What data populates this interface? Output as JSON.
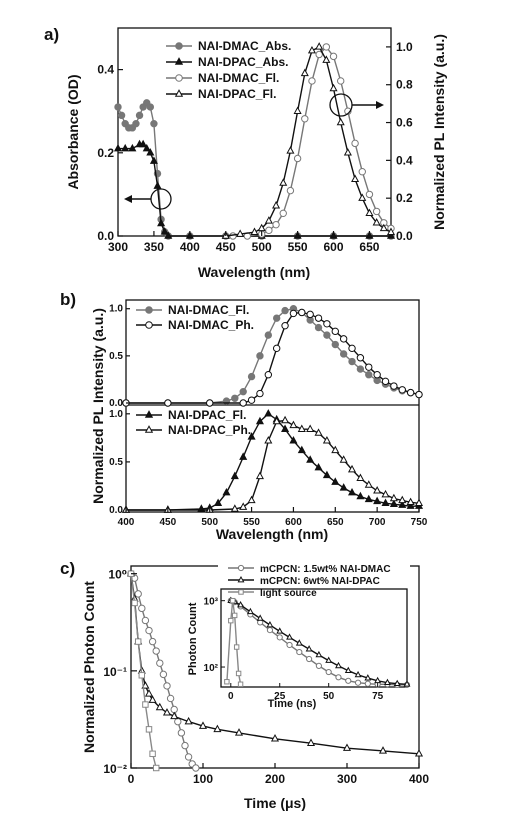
{
  "chart_data": [
    {
      "panel_label": "a)",
      "type": "line",
      "xlabel": "Wavelength (nm)",
      "ylabel_left": "Absorbance (OD)",
      "ylabel_right": "Normalized PL Intensity (a.u.)",
      "xlim": [
        300,
        680
      ],
      "ylim_left": [
        0,
        0.5
      ],
      "ylim_right": [
        0,
        1.1
      ],
      "xticks": [
        300,
        350,
        400,
        450,
        500,
        550,
        600,
        650
      ],
      "yticks_left": [
        0.0,
        0.2,
        0.4
      ],
      "yticks_right": [
        0.0,
        0.2,
        0.4,
        0.6,
        0.8,
        1.0
      ],
      "ytick_labels_left": [
        "0.0",
        "0.2",
        "0.4"
      ],
      "ytick_labels_right": [
        "0.0",
        "0.2",
        "0.4",
        "0.6",
        "0.8",
        "1.0"
      ],
      "legend_position": "top-left",
      "series": [
        {
          "name": "NAI-DMAC_Abs.",
          "axis": "left",
          "marker": "filled-circle",
          "color": "#777777",
          "x": [
            300,
            305,
            310,
            315,
            320,
            325,
            330,
            335,
            340,
            345,
            350,
            355,
            360,
            365,
            370,
            400,
            450,
            500,
            550,
            600,
            650,
            680
          ],
          "y": [
            0.31,
            0.29,
            0.27,
            0.26,
            0.26,
            0.27,
            0.29,
            0.31,
            0.32,
            0.31,
            0.27,
            0.15,
            0.04,
            0.01,
            0.0,
            0.0,
            0.0,
            0.0,
            0.0,
            0.0,
            0.0,
            0.0
          ]
        },
        {
          "name": "NAI-DPAC_Abs.",
          "axis": "left",
          "marker": "filled-triangle",
          "color": "#111111",
          "x": [
            300,
            310,
            320,
            330,
            335,
            340,
            345,
            350,
            355,
            360,
            365,
            370,
            400,
            450,
            500,
            550,
            600,
            650,
            680
          ],
          "y": [
            0.21,
            0.21,
            0.21,
            0.22,
            0.22,
            0.21,
            0.2,
            0.18,
            0.12,
            0.03,
            0.01,
            0.0,
            0.0,
            0.0,
            0.0,
            0.0,
            0.0,
            0.0,
            0.0
          ]
        },
        {
          "name": "NAI-DMAC_Fl.",
          "axis": "right",
          "marker": "open-circle",
          "color": "#777777",
          "x": [
            460,
            480,
            500,
            510,
            520,
            530,
            540,
            550,
            560,
            570,
            580,
            590,
            600,
            610,
            620,
            630,
            640,
            650,
            660,
            670,
            680
          ],
          "y": [
            0.0,
            0.0,
            0.01,
            0.03,
            0.06,
            0.12,
            0.24,
            0.41,
            0.62,
            0.82,
            0.96,
            1.0,
            0.95,
            0.82,
            0.66,
            0.49,
            0.34,
            0.22,
            0.13,
            0.07,
            0.04
          ]
        },
        {
          "name": "NAI-DPAC_Fl.",
          "axis": "right",
          "marker": "open-triangle",
          "color": "#111111",
          "x": [
            450,
            470,
            490,
            500,
            510,
            520,
            530,
            540,
            550,
            560,
            570,
            580,
            590,
            600,
            610,
            620,
            630,
            640,
            650,
            660,
            670,
            680
          ],
          "y": [
            0.0,
            0.01,
            0.02,
            0.04,
            0.08,
            0.16,
            0.28,
            0.45,
            0.66,
            0.86,
            0.98,
            1.0,
            0.93,
            0.78,
            0.6,
            0.44,
            0.3,
            0.2,
            0.12,
            0.07,
            0.04,
            0.02
          ]
        }
      ]
    },
    {
      "panel_label": "b)",
      "type": "line",
      "xlabel": "Wavelength (nm)",
      "ylabel": "Normalized PL Intensity (a.u.)",
      "xlim": [
        400,
        750
      ],
      "ylim": [
        0,
        1.05
      ],
      "xticks": [
        400,
        450,
        500,
        550,
        600,
        650,
        700,
        750
      ],
      "yticks": [
        0.0,
        0.5,
        1.0
      ],
      "ytick_labels": [
        "0.0",
        "0.5",
        "1.0"
      ],
      "subplots": [
        {
          "legend_position": "top-left",
          "series": [
            {
              "name": "NAI-DMAC_Fl.",
              "marker": "filled-circle",
              "color": "#777777",
              "x": [
                400,
                450,
                500,
                520,
                530,
                540,
                550,
                560,
                570,
                580,
                590,
                600,
                610,
                620,
                630,
                640,
                650,
                660,
                670,
                680,
                690,
                700,
                710,
                720,
                730,
                740,
                750
              ],
              "y": [
                0.0,
                0.0,
                0.0,
                0.02,
                0.05,
                0.12,
                0.28,
                0.5,
                0.72,
                0.9,
                0.98,
                1.0,
                0.96,
                0.88,
                0.8,
                0.72,
                0.62,
                0.52,
                0.44,
                0.36,
                0.3,
                0.24,
                0.2,
                0.16,
                0.13,
                0.11,
                0.09
              ]
            },
            {
              "name": "NAI-DMAC_Ph.",
              "marker": "open-circle",
              "color": "#111111",
              "x": [
                400,
                450,
                500,
                540,
                550,
                560,
                570,
                580,
                590,
                600,
                610,
                620,
                630,
                640,
                650,
                660,
                670,
                680,
                690,
                700,
                710,
                720,
                730,
                740,
                750
              ],
              "y": [
                0.0,
                0.0,
                0.0,
                0.0,
                0.03,
                0.1,
                0.3,
                0.58,
                0.82,
                0.95,
                0.96,
                0.94,
                0.9,
                0.84,
                0.76,
                0.68,
                0.58,
                0.48,
                0.38,
                0.3,
                0.23,
                0.18,
                0.14,
                0.11,
                0.09
              ]
            }
          ]
        },
        {
          "legend_position": "top-left",
          "series": [
            {
              "name": "NAI-DPAC_Fl.",
              "marker": "filled-triangle",
              "color": "#111111",
              "x": [
                400,
                450,
                490,
                500,
                510,
                520,
                530,
                540,
                550,
                560,
                570,
                580,
                590,
                600,
                610,
                620,
                630,
                640,
                650,
                660,
                670,
                680,
                690,
                700,
                710,
                720,
                730,
                740,
                750
              ],
              "y": [
                0.0,
                0.0,
                0.01,
                0.02,
                0.07,
                0.18,
                0.35,
                0.55,
                0.76,
                0.92,
                1.0,
                0.94,
                0.84,
                0.72,
                0.62,
                0.52,
                0.44,
                0.36,
                0.29,
                0.23,
                0.18,
                0.14,
                0.11,
                0.09,
                0.07,
                0.06,
                0.05,
                0.04,
                0.04
              ]
            },
            {
              "name": "NAI-DPAC_Ph.",
              "marker": "open-triangle",
              "color": "#111111",
              "x": [
                400,
                450,
                500,
                530,
                540,
                550,
                560,
                570,
                580,
                590,
                600,
                610,
                620,
                630,
                640,
                650,
                660,
                670,
                680,
                690,
                700,
                710,
                720,
                730,
                740,
                750
              ],
              "y": [
                0.0,
                0.0,
                0.0,
                0.01,
                0.03,
                0.1,
                0.35,
                0.72,
                0.92,
                0.93,
                0.88,
                0.84,
                0.84,
                0.8,
                0.72,
                0.62,
                0.52,
                0.42,
                0.33,
                0.26,
                0.2,
                0.16,
                0.12,
                0.1,
                0.08,
                0.07
              ]
            }
          ]
        }
      ]
    },
    {
      "panel_label": "c)",
      "type": "line",
      "xlabel": "Time (μs)",
      "ylabel": "Normalized Photon Count",
      "xlim": [
        0,
        400
      ],
      "ylim": [
        0.01,
        1.2
      ],
      "yscale": "log",
      "xticks": [
        0,
        100,
        200,
        300,
        400
      ],
      "ytick_labels": [
        "10⁰",
        "10⁻¹",
        "10⁻²"
      ],
      "series": [
        {
          "name": "mCPCN: 1.5wt% NAI-DMAC",
          "marker": "open-circle",
          "color": "#777777",
          "x": [
            0,
            5,
            10,
            15,
            20,
            25,
            30,
            35,
            40,
            45,
            50,
            55,
            60,
            65,
            70,
            75,
            80,
            85,
            90
          ],
          "y": [
            1.0,
            0.9,
            0.62,
            0.44,
            0.33,
            0.26,
            0.2,
            0.16,
            0.12,
            0.092,
            0.07,
            0.052,
            0.04,
            0.03,
            0.023,
            0.017,
            0.013,
            0.011,
            0.01
          ]
        },
        {
          "name": "mCPCN: 6wt% NAI-DPAC",
          "marker": "open-triangle",
          "color": "#111111",
          "x": [
            0,
            5,
            10,
            15,
            20,
            25,
            30,
            40,
            50,
            60,
            80,
            100,
            120,
            150,
            200,
            250,
            300,
            350,
            400
          ],
          "y": [
            1.0,
            0.55,
            0.2,
            0.1,
            0.07,
            0.058,
            0.05,
            0.042,
            0.037,
            0.034,
            0.03,
            0.027,
            0.025,
            0.023,
            0.02,
            0.018,
            0.016,
            0.015,
            0.014
          ]
        },
        {
          "name": "light source",
          "marker": "open-square",
          "color": "#888888",
          "x": [
            0,
            5,
            10,
            15,
            20,
            25,
            30,
            35
          ],
          "y": [
            1.0,
            0.5,
            0.2,
            0.09,
            0.045,
            0.025,
            0.014,
            0.01
          ]
        }
      ],
      "inset": {
        "xlabel": "Time (ns)",
        "ylabel": "Photon Count",
        "xlim": [
          -5,
          90
        ],
        "ylim": [
          50,
          1500
        ],
        "yscale": "log",
        "xticks": [
          0,
          25,
          50,
          75
        ],
        "ytick_labels": [
          "10³",
          "10²"
        ],
        "legend_position": "top-right",
        "series": [
          {
            "name": "mCPCN: 1.5wt% NAI-DMAC",
            "marker": "open-circle",
            "color": "#777777",
            "x": [
              0,
              2,
              5,
              10,
              15,
              20,
              25,
              30,
              35,
              40,
              45,
              50,
              55,
              60,
              65,
              70,
              75,
              80,
              85,
              90
            ],
            "y": [
              1000,
              950,
              820,
              620,
              470,
              360,
              280,
              215,
              168,
              132,
              104,
              84,
              70,
              62,
              58,
              56,
              55,
              55,
              54,
              54
            ]
          },
          {
            "name": "mCPCN: 6wt% NAI-DPAC",
            "marker": "open-triangle",
            "color": "#111111",
            "x": [
              0,
              2,
              5,
              10,
              15,
              20,
              25,
              30,
              35,
              40,
              45,
              50,
              55,
              60,
              65,
              70,
              75,
              80,
              85,
              90
            ],
            "y": [
              1000,
              960,
              860,
              680,
              540,
              430,
              345,
              280,
              228,
              186,
              152,
              125,
              104,
              88,
              76,
              68,
              62,
              58,
              56,
              55
            ]
          },
          {
            "name": "light source",
            "marker": "open-square",
            "color": "#888888",
            "x": [
              -2,
              0,
              1,
              2,
              3,
              4,
              5
            ],
            "y": [
              60,
              500,
              1000,
              600,
              200,
              80,
              55
            ]
          }
        ]
      }
    }
  ]
}
